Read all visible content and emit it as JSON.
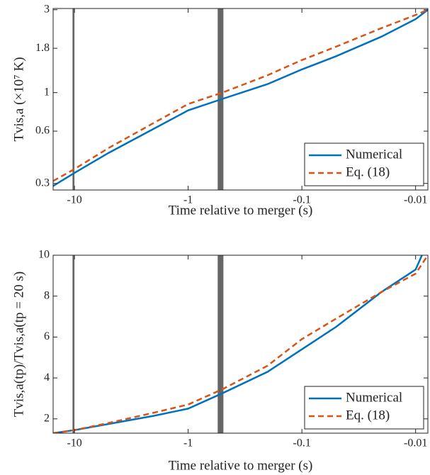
{
  "chart_data": [
    {
      "type": "line",
      "xlabel": "Time relative to merger (s)",
      "ylabel": "Tvis,a (×10⁷ K)",
      "xscale": "log",
      "yscale": "log",
      "xlim": [
        -15.4,
        -0.0078
      ],
      "xticks": [
        -10,
        -1,
        -0.1,
        -0.01
      ],
      "ylim": [
        0.275,
        3.05
      ],
      "yticks": [
        0.3,
        0.6,
        1,
        1.8,
        3
      ],
      "vspans": [
        [
          -10.4,
          -10.0
        ],
        [
          -0.55,
          -0.49
        ]
      ],
      "vspan_color": "#666666",
      "legend": "lower right",
      "series": [
        {
          "name": "Numerical",
          "color": "#0072BD",
          "dashed": false,
          "x": [
            -15.4,
            -10,
            -5,
            -2,
            -1,
            -0.5,
            -0.2,
            -0.1,
            -0.05,
            -0.02,
            -0.01,
            -0.0078
          ],
          "values": [
            0.29,
            0.345,
            0.45,
            0.62,
            0.79,
            0.92,
            1.12,
            1.36,
            1.62,
            2.1,
            2.65,
            3.0
          ]
        },
        {
          "name": "Eq. (18)",
          "color": "#D95319",
          "dashed": true,
          "x": [
            -15.4,
            -10,
            -5,
            -2,
            -1,
            -0.5,
            -0.2,
            -0.1,
            -0.05,
            -0.02,
            -0.01,
            -0.0078
          ],
          "values": [
            0.31,
            0.363,
            0.48,
            0.67,
            0.86,
            1.0,
            1.26,
            1.54,
            1.84,
            2.35,
            2.8,
            3.0
          ]
        }
      ]
    },
    {
      "type": "line",
      "xlabel": "Time relative to merger (s)",
      "ylabel": "Tvis,a(tp)/Tvis,a(tp = 20 s)",
      "xscale": "log",
      "yscale": "linear",
      "xlim": [
        -15.4,
        -0.0078
      ],
      "xticks": [
        -10,
        -1,
        -0.1,
        -0.01
      ],
      "ylim": [
        1.3,
        10
      ],
      "yticks": [
        2,
        4,
        6,
        8,
        10
      ],
      "vspans": [
        [
          -10.4,
          -10.0
        ],
        [
          -0.55,
          -0.49
        ]
      ],
      "vspan_color": "#666666",
      "legend": "lower right",
      "series": [
        {
          "name": "Numerical",
          "color": "#0072BD",
          "dashed": false,
          "x": [
            -15.4,
            -10,
            -5,
            -2,
            -1,
            -0.5,
            -0.2,
            -0.1,
            -0.05,
            -0.02,
            -0.01,
            -0.0088
          ],
          "values": [
            1.3,
            1.45,
            1.75,
            2.15,
            2.5,
            3.25,
            4.3,
            5.4,
            6.5,
            8.2,
            9.3,
            10
          ]
        },
        {
          "name": "Eq. (18)",
          "color": "#D95319",
          "dashed": true,
          "x": [
            -15.4,
            -10,
            -5,
            -2,
            -1,
            -0.5,
            -0.2,
            -0.1,
            -0.05,
            -0.02,
            -0.01,
            -0.0078
          ],
          "values": [
            1.3,
            1.45,
            1.8,
            2.3,
            2.7,
            3.45,
            4.6,
            5.9,
            6.9,
            8.2,
            9.1,
            10
          ]
        }
      ]
    }
  ]
}
